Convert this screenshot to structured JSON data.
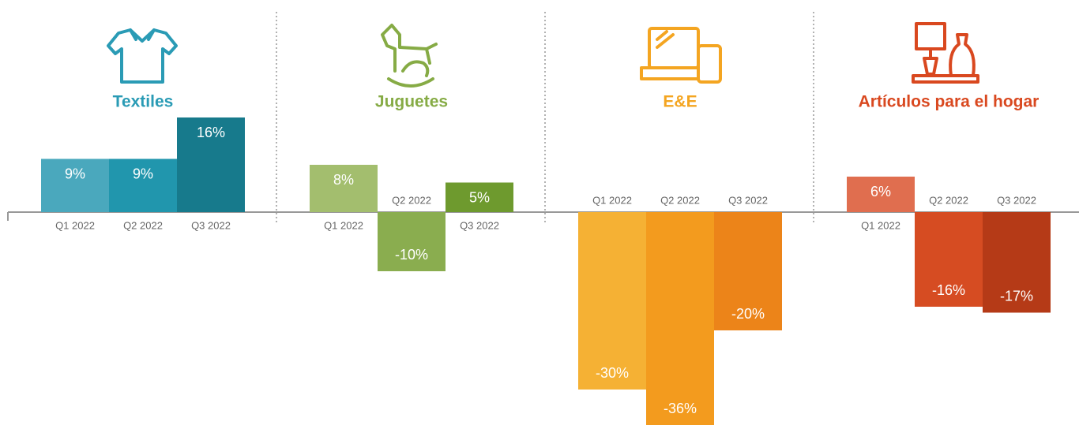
{
  "chart_data": [
    {
      "type": "bar",
      "title": "Textiles",
      "title_color": "#2a9bb5",
      "categories": [
        "Q1 2022",
        "Q2 2022",
        "Q3 2022"
      ],
      "values": [
        9,
        9,
        16
      ],
      "value_labels": [
        "9%",
        "9%",
        "16%"
      ],
      "colors": [
        "#4aa8bd",
        "#2196ad",
        "#177a8c"
      ]
    },
    {
      "type": "bar",
      "title": "Juguetes",
      "title_color": "#86ab45",
      "categories": [
        "Q1 2022",
        "Q2 2022",
        "Q3 2022"
      ],
      "values": [
        8,
        -10,
        5
      ],
      "value_labels": [
        "8%",
        "-10%",
        "5%"
      ],
      "colors": [
        "#a3be6e",
        "#8aad4f",
        "#6e9a2e"
      ]
    },
    {
      "type": "bar",
      "title": "E&E",
      "title_color": "#f4a521",
      "categories": [
        "Q1 2022",
        "Q2 2022",
        "Q3 2022"
      ],
      "values": [
        -30,
        -36,
        -20
      ],
      "value_labels": [
        "-30%",
        "-36%",
        "-20%"
      ],
      "colors": [
        "#f5b134",
        "#f39b1e",
        "#ec8419"
      ]
    },
    {
      "type": "bar",
      "title": "Artículos para el hogar",
      "title_color": "#d9481f",
      "categories": [
        "Q1 2022",
        "Q2 2022",
        "Q3 2022"
      ],
      "values": [
        6,
        -16,
        -17
      ],
      "value_labels": [
        "6%",
        "-16%",
        "-17%"
      ],
      "colors": [
        "#e06e4f",
        "#d64c22",
        "#b53a17"
      ]
    }
  ]
}
